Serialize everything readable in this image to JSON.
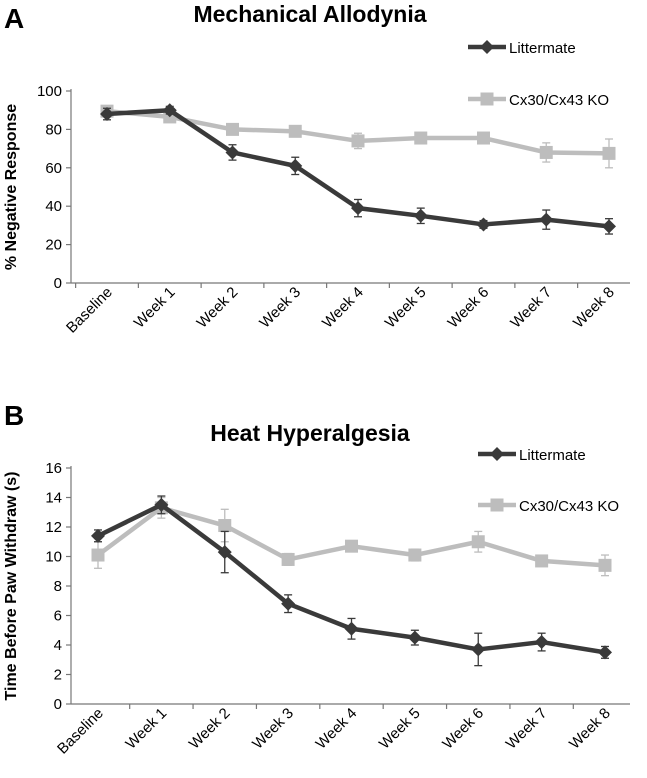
{
  "chart_data": [
    {
      "type": "line",
      "panel": "A",
      "title": "Mechanical Allodynia",
      "xlabel": "",
      "ylabel": "% Negative Response",
      "ylim": [
        0,
        100
      ],
      "yticks": [
        0,
        20,
        40,
        60,
        80,
        100
      ],
      "grid": false,
      "legend_position": "top-right",
      "categories": [
        "Baseline",
        "Week 1",
        "Week 2",
        "Week 3",
        "Week 4",
        "Week 5",
        "Week 6",
        "Week 7",
        "Week 8"
      ],
      "series": [
        {
          "name": "Littermate",
          "color": "#3a3a3a",
          "marker": "diamond",
          "values": [
            88,
            90,
            68,
            61,
            39,
            35,
            30.5,
            33,
            29.5
          ],
          "errors": [
            3,
            2,
            4,
            4.5,
            4.5,
            4,
            2,
            5,
            4
          ]
        },
        {
          "name": "Cx30/Cx43 KO",
          "color": "#bdbdbd",
          "marker": "square",
          "values": [
            89.5,
            86.5,
            80,
            79,
            74,
            75.5,
            75.5,
            68,
            67.5
          ],
          "errors": [
            2,
            2,
            2,
            2,
            4,
            2,
            2,
            5,
            7.5
          ]
        }
      ]
    },
    {
      "type": "line",
      "panel": "B",
      "title": "Heat Hyperalgesia",
      "xlabel": "",
      "ylabel": "Time Before Paw Withdraw (s)",
      "ylim": [
        0,
        16
      ],
      "yticks": [
        0,
        2,
        4,
        6,
        8,
        10,
        12,
        14,
        16
      ],
      "grid": false,
      "legend_position": "top-right",
      "categories": [
        "Baseline",
        "Week 1",
        "Week 2",
        "Week 3",
        "Week 4",
        "Week 5",
        "Week 6",
        "Week 7",
        "Week 8"
      ],
      "series": [
        {
          "name": "Littermate",
          "color": "#3a3a3a",
          "marker": "diamond",
          "values": [
            11.4,
            13.5,
            10.3,
            6.8,
            5.1,
            4.5,
            3.7,
            4.2,
            3.5
          ],
          "errors": [
            0.4,
            0.6,
            1.4,
            0.6,
            0.7,
            0.5,
            1.1,
            0.6,
            0.4
          ]
        },
        {
          "name": "Cx30/Cx43 KO",
          "color": "#bdbdbd",
          "marker": "square",
          "values": [
            10.1,
            13.3,
            12.1,
            9.8,
            10.7,
            10.1,
            11.0,
            9.7,
            9.4
          ],
          "errors": [
            0.9,
            0.7,
            1.1,
            0.4,
            0.2,
            0.4,
            0.7,
            0.3,
            0.7
          ]
        }
      ]
    }
  ]
}
